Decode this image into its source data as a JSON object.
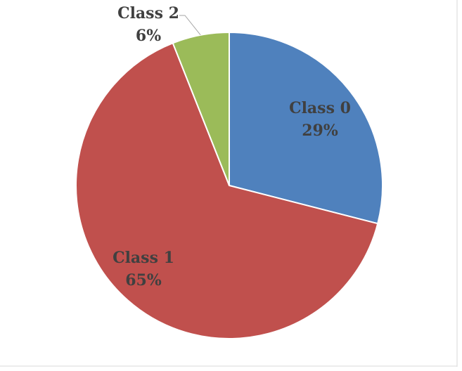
{
  "chart_data": {
    "type": "pie",
    "categories": [
      "Class 0",
      "Class 1",
      "Class 2"
    ],
    "values": [
      29,
      65,
      6
    ],
    "value_labels": [
      "29%",
      "65%",
      "6%"
    ],
    "colors": [
      "#4f81bd",
      "#c0504d",
      "#9bbb59"
    ]
  }
}
